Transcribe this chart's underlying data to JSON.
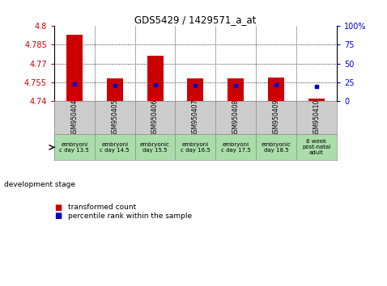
{
  "title": "GDS5429 / 1429571_a_at",
  "samples": [
    "GSM950404",
    "GSM950405",
    "GSM950406",
    "GSM950407",
    "GSM950408",
    "GSM950409",
    "GSM950410"
  ],
  "dev_stages": [
    "embryoni\nc day 13.5",
    "embryoni\nc day 14.5",
    "embryonic\nday 15.5",
    "embryoni\nc day 16.5",
    "embryoni\nc day 17.5",
    "embryonic\nday 18.5",
    "8 week\npost-natal\nadult"
  ],
  "transformed_counts": [
    4.793,
    4.758,
    4.776,
    4.758,
    4.758,
    4.759,
    4.742
  ],
  "percentile_ranks": [
    23,
    21,
    22,
    21,
    21,
    22,
    20
  ],
  "ylim_left": [
    4.74,
    4.8
  ],
  "ylim_right": [
    0,
    100
  ],
  "yticks_left": [
    4.74,
    4.755,
    4.77,
    4.785,
    4.8
  ],
  "yticks_right": [
    0,
    25,
    50,
    75,
    100
  ],
  "ytick_labels_left": [
    "4.74",
    "4.755",
    "4.77",
    "4.785",
    "4.8"
  ],
  "ytick_labels_right": [
    "0",
    "25",
    "50",
    "75",
    "100%"
  ],
  "bar_bottom": 4.74,
  "bar_color": "#cc0000",
  "dot_color": "#0000cc",
  "bg_color": "#ffffff",
  "sample_bg": "#cccccc",
  "stage_bg": "#aaddaa",
  "legend_red_label": "transformed count",
  "legend_blue_label": "percentile rank within the sample"
}
